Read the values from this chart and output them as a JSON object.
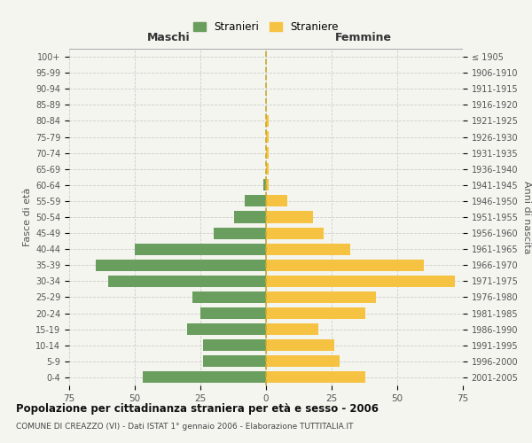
{
  "age_groups": [
    "100+",
    "95-99",
    "90-94",
    "85-89",
    "80-84",
    "75-79",
    "70-74",
    "65-69",
    "60-64",
    "55-59",
    "50-54",
    "45-49",
    "40-44",
    "35-39",
    "30-34",
    "25-29",
    "20-24",
    "15-19",
    "10-14",
    "5-9",
    "0-4"
  ],
  "birth_years": [
    "≤ 1905",
    "1906-1910",
    "1911-1915",
    "1916-1920",
    "1921-1925",
    "1926-1930",
    "1931-1935",
    "1936-1940",
    "1941-1945",
    "1946-1950",
    "1951-1955",
    "1956-1960",
    "1961-1965",
    "1966-1970",
    "1971-1975",
    "1976-1980",
    "1981-1985",
    "1986-1990",
    "1991-1995",
    "1996-2000",
    "2001-2005"
  ],
  "males": [
    0,
    0,
    0,
    0,
    0,
    0,
    0,
    0,
    1,
    8,
    12,
    20,
    50,
    65,
    60,
    28,
    25,
    30,
    24,
    24,
    47
  ],
  "females": [
    0,
    0,
    0,
    0,
    1,
    1,
    1,
    1,
    1,
    8,
    18,
    22,
    32,
    60,
    72,
    42,
    38,
    20,
    26,
    28,
    38
  ],
  "male_color": "#6a9e5e",
  "female_color": "#f5c242",
  "background_color": "#f5f5f0",
  "grid_color": "#cccccc",
  "title": "Popolazione per cittadinanza straniera per età e sesso - 2006",
  "subtitle": "COMUNE DI CREAZZO (VI) - Dati ISTAT 1° gennaio 2006 - Elaborazione TUTTITALIA.IT",
  "xlabel_left": "Maschi",
  "xlabel_right": "Femmine",
  "ylabel_left": "Fasce di età",
  "ylabel_right": "Anni di nascita",
  "legend_males": "Stranieri",
  "legend_females": "Straniere",
  "xlim": 75,
  "center_line_color": "#c8a830",
  "header_line_color": "#aaaaaa"
}
